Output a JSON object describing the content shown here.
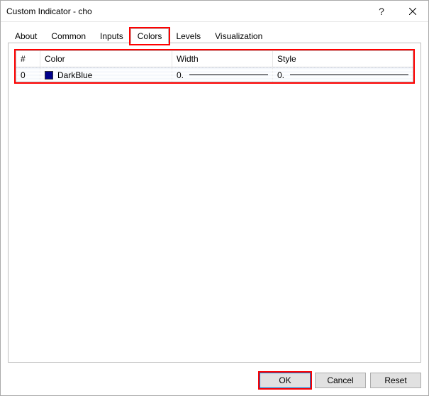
{
  "window": {
    "title": "Custom Indicator - cho"
  },
  "tabs": [
    {
      "label": "About",
      "active": false,
      "highlight": false
    },
    {
      "label": "Common",
      "active": false,
      "highlight": false
    },
    {
      "label": "Inputs",
      "active": false,
      "highlight": false
    },
    {
      "label": "Colors",
      "active": true,
      "highlight": true
    },
    {
      "label": "Levels",
      "active": false,
      "highlight": false
    },
    {
      "label": "Visualization",
      "active": false,
      "highlight": false
    }
  ],
  "grid": {
    "highlight": true,
    "columns": {
      "index": "#",
      "color": "Color",
      "width": "Width",
      "style": "Style"
    },
    "rows": [
      {
        "index": "0",
        "color_name": "DarkBlue",
        "color_hex": "#00008b",
        "width_label": "0.",
        "style_label": "0.",
        "line_thickness_px": 1,
        "line_style": "solid"
      }
    ]
  },
  "buttons": {
    "ok": "OK",
    "cancel": "Cancel",
    "reset": "Reset"
  },
  "highlight_color": "#ff0000"
}
